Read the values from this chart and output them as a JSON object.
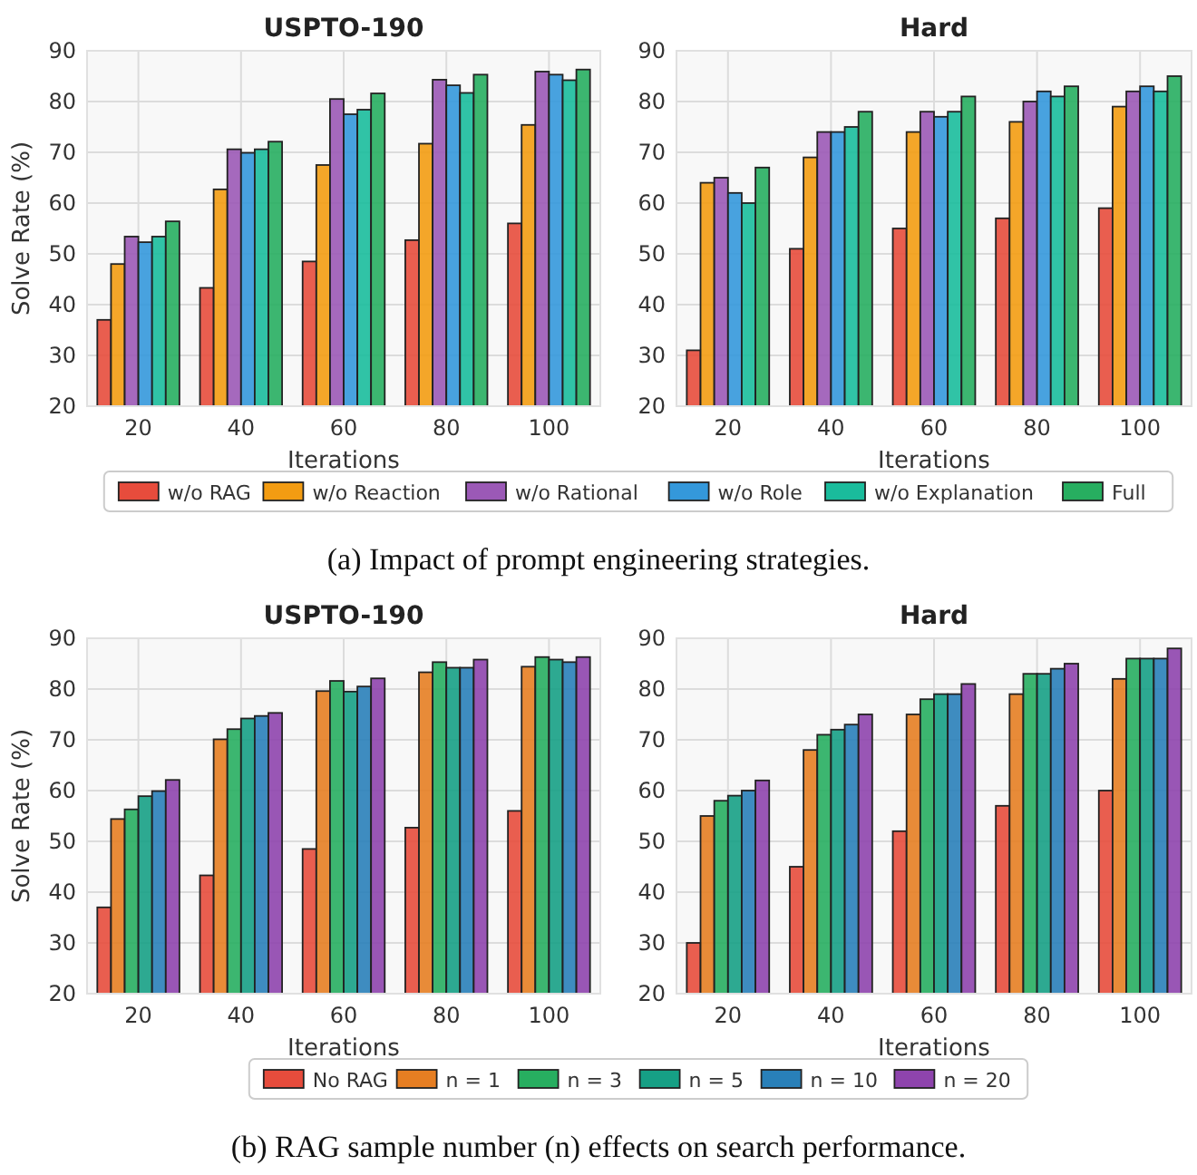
{
  "chart_data": [
    {
      "type": "bar",
      "title": "USPTO-190",
      "xlabel": "Iterations",
      "ylabel": "Solve Rate (%)",
      "categories": [
        "20",
        "40",
        "60",
        "80",
        "100"
      ],
      "ylim": [
        20,
        90
      ],
      "yticks": [
        20,
        30,
        40,
        50,
        60,
        70,
        80,
        90
      ],
      "grid": true,
      "legend": "bottom",
      "annotations": [
        "(a) Impact of prompt engineering strategies."
      ],
      "series": [
        {
          "name": "w/o RAG",
          "color": "#e74c3c",
          "values": [
            37,
            43.3,
            48.5,
            52.7,
            56
          ]
        },
        {
          "name": "w/o Reaction",
          "color": "#f39c12",
          "values": [
            48,
            62.7,
            67.5,
            71.7,
            75.4
          ]
        },
        {
          "name": "w/o Rational",
          "color": "#9b59b6",
          "values": [
            53.4,
            70.6,
            80.5,
            84.3,
            85.9
          ]
        },
        {
          "name": "w/o Role",
          "color": "#3498db",
          "values": [
            52.3,
            69.9,
            77.5,
            83.2,
            85.3
          ]
        },
        {
          "name": "w/o Explanation",
          "color": "#1abc9c",
          "values": [
            53.4,
            70.6,
            78.4,
            81.7,
            84.2
          ]
        },
        {
          "name": "Full",
          "color": "#27ae60",
          "values": [
            56.4,
            72.1,
            81.6,
            85.3,
            86.3
          ]
        }
      ]
    },
    {
      "type": "bar",
      "title": "Hard",
      "xlabel": "Iterations",
      "categories": [
        "20",
        "40",
        "60",
        "80",
        "100"
      ],
      "ylim": [
        20,
        90
      ],
      "yticks": [
        20,
        30,
        40,
        50,
        60,
        70,
        80,
        90
      ],
      "grid": true,
      "series": [
        {
          "color": "#e74c3c",
          "values": [
            31,
            51,
            55,
            57,
            59
          ]
        },
        {
          "color": "#f39c12",
          "values": [
            64,
            69,
            74,
            76,
            79
          ]
        },
        {
          "color": "#9b59b6",
          "values": [
            65,
            74,
            78,
            80,
            82
          ]
        },
        {
          "color": "#3498db",
          "values": [
            62,
            74,
            77,
            82,
            83
          ]
        },
        {
          "color": "#1abc9c",
          "values": [
            60,
            75,
            78,
            81,
            82
          ]
        },
        {
          "color": "#27ae60",
          "values": [
            67,
            78,
            81,
            83,
            85
          ]
        }
      ]
    },
    {
      "type": "bar",
      "title": "USPTO-190",
      "xlabel": "Iterations",
      "ylabel": "Solve Rate (%)",
      "categories": [
        "20",
        "40",
        "60",
        "80",
        "100"
      ],
      "ylim": [
        20,
        90
      ],
      "yticks": [
        20,
        30,
        40,
        50,
        60,
        70,
        80,
        90
      ],
      "grid": true,
      "legend": "bottom",
      "annotations": [
        "(b) RAG sample number (n) effects on search performance."
      ],
      "series": [
        {
          "name": "No RAG",
          "color": "#e74c3c",
          "values": [
            37,
            43.3,
            48.5,
            52.7,
            56
          ]
        },
        {
          "name": "n = 1",
          "color": "#e67e22",
          "values": [
            54.4,
            70.1,
            79.6,
            83.3,
            84.4
          ]
        },
        {
          "name": "n = 3",
          "color": "#27ae60",
          "values": [
            56.3,
            72.1,
            81.6,
            85.3,
            86.3
          ]
        },
        {
          "name": "n = 5",
          "color": "#16a085",
          "values": [
            58.9,
            74.2,
            79.5,
            84.2,
            85.8
          ]
        },
        {
          "name": "n = 10",
          "color": "#2980b9",
          "values": [
            59.9,
            74.7,
            80.5,
            84.2,
            85.3
          ]
        },
        {
          "name": "n = 20",
          "color": "#8e44ad",
          "values": [
            62.1,
            75.3,
            82.1,
            85.8,
            86.3
          ]
        }
      ]
    },
    {
      "type": "bar",
      "title": "Hard",
      "xlabel": "Iterations",
      "categories": [
        "20",
        "40",
        "60",
        "80",
        "100"
      ],
      "ylim": [
        20,
        90
      ],
      "yticks": [
        20,
        30,
        40,
        50,
        60,
        70,
        80,
        90
      ],
      "grid": true,
      "series": [
        {
          "color": "#e74c3c",
          "values": [
            30,
            45,
            52,
            57,
            60
          ]
        },
        {
          "color": "#e67e22",
          "values": [
            55,
            68,
            75,
            79,
            82
          ]
        },
        {
          "color": "#27ae60",
          "values": [
            58,
            71,
            78,
            83,
            86
          ]
        },
        {
          "color": "#16a085",
          "values": [
            59,
            72,
            79,
            83,
            86
          ]
        },
        {
          "color": "#2980b9",
          "values": [
            60,
            73,
            79,
            84,
            86
          ]
        },
        {
          "color": "#8e44ad",
          "values": [
            62,
            75,
            81,
            85,
            88
          ]
        }
      ]
    }
  ]
}
